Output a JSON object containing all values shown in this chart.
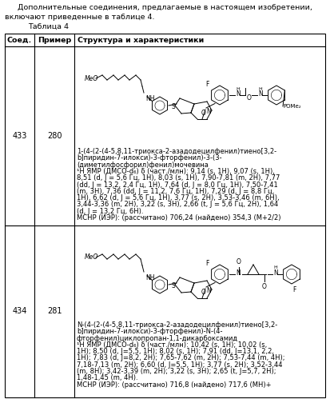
{
  "title_line1": "Дополнительные соединения, предлагаемые в настоящем изобретении,",
  "title_line2": "включают приведенные в таблице 4.",
  "table_title": "Таблица 4",
  "col_headers": [
    "Соед.",
    "Пример",
    "Структура и характеристики"
  ],
  "row1_soed": "433",
  "row1_primer": "280",
  "row1_name": "1-(4-(2-(4-5,8,11-триокса-2-азадодецилфенил)тиено[3,2-\nb]пиридин-7-илокси)-3-фторфенил)-3-(3-\n(диметилфосфорил)фенил)мочевина",
  "row1_nmr": "¹Н ЯМР (ДМСО-d₆) δ (част./млн): 9,14 (s, 1H), 9,07 (s, 1H),\n8,51 (d, J = 5,6 Гц, 1H), 8,03 (s, 1H), 7,90-7,81 (m, 2H), 7,77\n(dd, J = 13,2, 2,4 Гц, 1H), 7,64 (d, J = 8,0 Гц, 1H), 7,50-7,41\n(m, 3H), 7,36 (dd, J = 11,2, 7,6 Гц, 1H), 7,29 (d, J = 8,8 Гц,\n1H), 6,62 (d, J = 5,6 Гц, 1H), 3,77 (s, 2H), 3,53-3,46 (m, 6H),\n3,44-3,36 (m, 2H), 3,22 (s, 3H), 2,66 (t, J = 5,6 Гц, 2H), 1,64\n(d, J = 13,2 Гц, 6H).",
  "row1_ms": "МСНР (ИЭР): (рассчитано) 706,24 (найдено) 354,3 (М+2/2)",
  "row2_soed": "434",
  "row2_primer": "281",
  "row2_name": "N-(4-(2-(4-5,8,11-триокса-2-азадодецилфенил)тиено[3,2-\nb]пиридин-7-илокси)-3-фторфенил)-N-(4-\nфторфенил)циклопропан-1,1-дикарбоксамид",
  "row2_nmr": "¹Н ЯМР (ДМСО-d₆) δ (част./млн): 10,42 (s, 1H); 10,02 (s,\n1H); 8,50 (d, J=5,5, 1H); 8,02 (s, 1H); 7,91 (dd, J=13,1, 2,2,\n1H); 7,83 (d, J=8,2, 2H); 7,65-7,62 (m, 2H); 7,53-7,44 (m, 4H);\n7,18-7,13 (m, 2H); 6,60 (d, J=5,5, 1H); 3,77 (s, 2H); 3,52-3,44\n(m, 8H); 3,42-3,39 (m, 2H); 3,22 (s, 3H); 2,65 (t, J=5,7, 2H);\n1,48-1,45 (m, 4H).",
  "row2_ms": "МСНР (ИЭР): (рассчитано) 716,8 (найдено) 717,6 (МН)+",
  "bg_color": "#ffffff",
  "text_color": "#000000",
  "fig_width": 4.13,
  "fig_height": 4.99,
  "dpi": 100
}
